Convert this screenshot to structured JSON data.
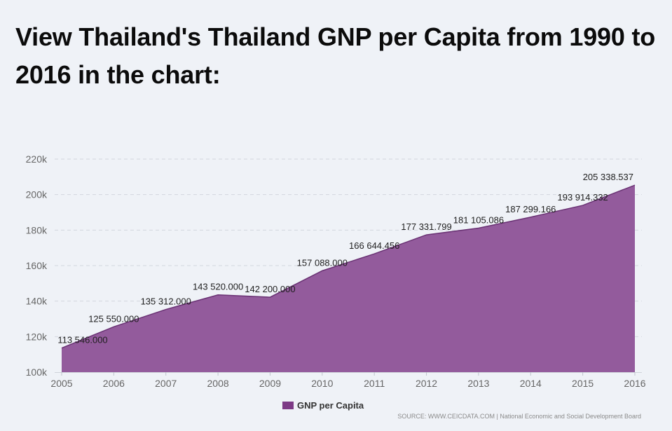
{
  "title": "View Thailand's Thailand GNP per Capita from 1990 to 2016 in the chart:",
  "source": "SOURCE: WWW.CEICDATA.COM | National Economic and Social Development Board",
  "colors": {
    "fill": "#935b9c",
    "line": "#6a3274",
    "swatch": "#7d3a86",
    "grid": "#d2d6de",
    "background": "#eff2f7"
  },
  "chart_data": {
    "type": "area",
    "x": [
      "2005",
      "2006",
      "2007",
      "2008",
      "2009",
      "2010",
      "2011",
      "2012",
      "2013",
      "2014",
      "2015",
      "2016"
    ],
    "series": [
      {
        "name": "GNP per Capita",
        "values": [
          113546.0,
          125550.0,
          135312.0,
          143520.0,
          142200.0,
          157088.0,
          166644.456,
          177331.799,
          181105.086,
          187299.166,
          193914.332,
          205338.537
        ],
        "labels": [
          "113 546.000",
          "125 550.000",
          "135 312.000",
          "143 520.000",
          "142 200.000",
          "157 088.000",
          "166 644.456",
          "177 331.799",
          "181 105.086",
          "187 299.166",
          "193 914.332",
          "205 338.537"
        ]
      }
    ],
    "ylim": [
      100000,
      220000
    ],
    "yticks": [
      100000,
      120000,
      140000,
      160000,
      180000,
      200000,
      220000
    ],
    "ytick_labels": [
      "100k",
      "120k",
      "140k",
      "160k",
      "180k",
      "200k",
      "220k"
    ],
    "grid": true,
    "legend_position": "bottom-center"
  }
}
